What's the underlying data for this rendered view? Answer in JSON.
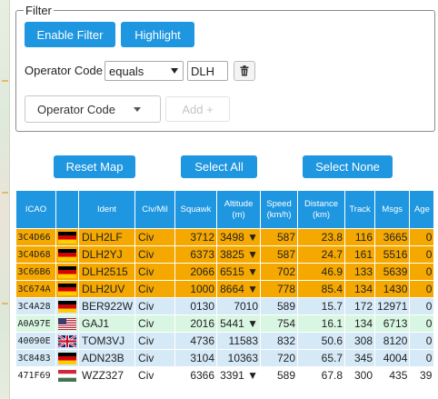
{
  "filter": {
    "legend": "Filter",
    "enable_label": "Enable Filter",
    "highlight_label": "Highlight",
    "operator_code_label": "Operator Code",
    "condition_value": "equals",
    "code_value": "DLH",
    "field_dropdown_label": "Operator Code",
    "add_label": "Add +"
  },
  "actions": {
    "reset_map": "Reset Map",
    "select_all": "Select All",
    "select_none": "Select None"
  },
  "table": {
    "headers": {
      "icao": "ICAO",
      "ident": "Ident",
      "civmil": "Civ/Mil",
      "squawk": "Squawk",
      "altitude_1": "Altitude",
      "altitude_2": "(m)",
      "speed_1": "Speed",
      "speed_2": "(km/h)",
      "distance_1": "Distance",
      "distance_2": "(km)",
      "track": "Track",
      "msgs": "Msgs",
      "age": "Age"
    },
    "rows": [
      {
        "icao": "3C4D66",
        "flag": "de",
        "ident": "DLH2LF",
        "civmil": "Civ",
        "squawk": "3712",
        "altitude": "3498 ▼",
        "speed": "587",
        "distance": "23.8",
        "track": "116",
        "msgs": "3665",
        "age": "0",
        "bg": "#f5a800"
      },
      {
        "icao": "3C4D68",
        "flag": "de",
        "ident": "DLH2YJ",
        "civmil": "Civ",
        "squawk": "6373",
        "altitude": "3825 ▼",
        "speed": "587",
        "distance": "24.7",
        "track": "161",
        "msgs": "5516",
        "age": "0",
        "bg": "#f5a800"
      },
      {
        "icao": "3C66B6",
        "flag": "de",
        "ident": "DLH2515",
        "civmil": "Civ",
        "squawk": "2066",
        "altitude": "6515 ▼",
        "speed": "702",
        "distance": "46.9",
        "track": "133",
        "msgs": "5639",
        "age": "0",
        "bg": "#f5a800"
      },
      {
        "icao": "3C674A",
        "flag": "de",
        "ident": "DLH2UV",
        "civmil": "Civ",
        "squawk": "1000",
        "altitude": "8664 ▼",
        "speed": "778",
        "distance": "85.4",
        "track": "134",
        "msgs": "1430",
        "age": "0",
        "bg": "#f5a800"
      },
      {
        "icao": "3C4A28",
        "flag": "de",
        "ident": "BER922W",
        "civmil": "Civ",
        "squawk": "0130",
        "altitude": "7010",
        "speed": "589",
        "distance": "15.7",
        "track": "172",
        "msgs": "12971",
        "age": "0",
        "bg": "#d5e9f7"
      },
      {
        "icao": "A0A97E",
        "flag": "us",
        "ident": "GAJ1",
        "civmil": "Civ",
        "squawk": "2016",
        "altitude": "5441 ▼",
        "speed": "754",
        "distance": "16.1",
        "track": "134",
        "msgs": "6713",
        "age": "0",
        "bg": "#d9f6e3"
      },
      {
        "icao": "40090E",
        "flag": "gb",
        "ident": "TOM3VJ",
        "civmil": "Civ",
        "squawk": "4736",
        "altitude": "11583",
        "speed": "832",
        "distance": "50.6",
        "track": "308",
        "msgs": "8120",
        "age": "0",
        "bg": "#d5e9f7"
      },
      {
        "icao": "3C8483",
        "flag": "de",
        "ident": "ADN23B",
        "civmil": "Civ",
        "squawk": "3104",
        "altitude": "10363",
        "speed": "720",
        "distance": "65.7",
        "track": "345",
        "msgs": "4004",
        "age": "0",
        "bg": "#d5e9f7"
      },
      {
        "icao": "471F69",
        "flag": "hu",
        "ident": "WZZ327",
        "civmil": "Civ",
        "squawk": "6366",
        "altitude": "3391 ▼",
        "speed": "589",
        "distance": "67.8",
        "track": "300",
        "msgs": "435",
        "age": "39",
        "bg": "#ffffff"
      }
    ]
  },
  "icons": {
    "trash": "trash-icon",
    "caret": "caret-down-icon"
  }
}
